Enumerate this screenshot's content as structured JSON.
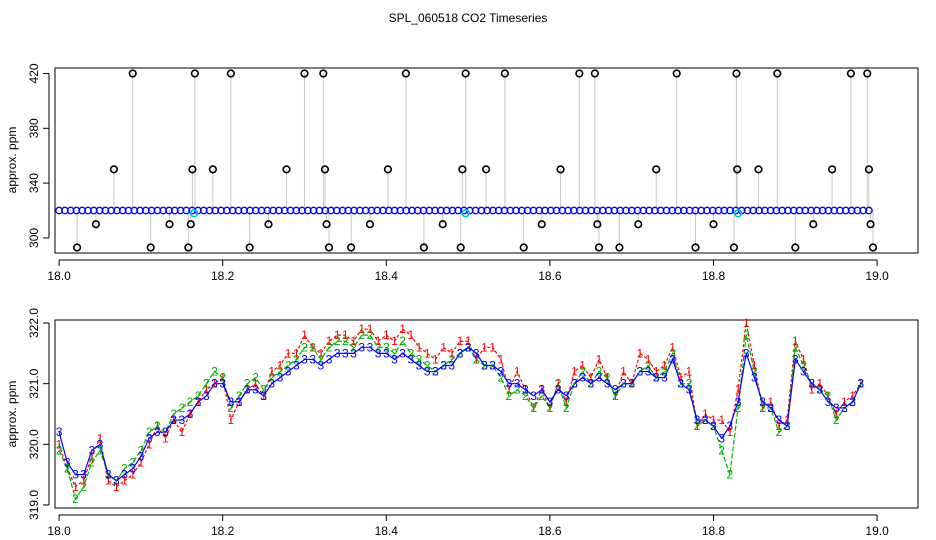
{
  "title": "SPL_060518  CO2 Timeseries",
  "chart_data": [
    {
      "type": "scatter",
      "panel": "top",
      "ylabel": "approx. ppm",
      "xlabel": "",
      "xlim": [
        17.995,
        19.05
      ],
      "ylim": [
        289,
        424
      ],
      "x_ticks": [
        18.0,
        18.2,
        18.4,
        18.6,
        18.8,
        19.0
      ],
      "x_tick_labels": [
        "18.0",
        "18.2",
        "18.4",
        "18.6",
        "18.8",
        "19.0"
      ],
      "y_ticks": [
        300,
        340,
        380,
        420
      ],
      "y_tick_labels": [
        "300",
        "340",
        "380",
        "420"
      ],
      "baseline_ppm": 320,
      "baseline_x_range": [
        18.0,
        18.99
      ],
      "colors": {
        "baseline": "#0000ff",
        "outlier": "#000000",
        "highlight": "#00c8c8",
        "drop": "#909090"
      },
      "highlights": [
        [
          18.165,
          318
        ],
        [
          18.497,
          318
        ],
        [
          18.83,
          318
        ]
      ],
      "outliers": [
        [
          18.022,
          293
        ],
        [
          18.045,
          310
        ],
        [
          18.067,
          350
        ],
        [
          18.09,
          420
        ],
        [
          18.112,
          293
        ],
        [
          18.135,
          310
        ],
        [
          18.158,
          293
        ],
        [
          18.161,
          310
        ],
        [
          18.163,
          350
        ],
        [
          18.166,
          420
        ],
        [
          18.188,
          350
        ],
        [
          18.21,
          420
        ],
        [
          18.233,
          293
        ],
        [
          18.256,
          310
        ],
        [
          18.278,
          350
        ],
        [
          18.3,
          420
        ],
        [
          18.323,
          420
        ],
        [
          18.325,
          350
        ],
        [
          18.327,
          310
        ],
        [
          18.33,
          293
        ],
        [
          18.357,
          293
        ],
        [
          18.38,
          310
        ],
        [
          18.402,
          350
        ],
        [
          18.424,
          420
        ],
        [
          18.446,
          293
        ],
        [
          18.469,
          310
        ],
        [
          18.491,
          293
        ],
        [
          18.493,
          350
        ],
        [
          18.497,
          420
        ],
        [
          18.522,
          350
        ],
        [
          18.545,
          420
        ],
        [
          18.568,
          293
        ],
        [
          18.59,
          310
        ],
        [
          18.613,
          350
        ],
        [
          18.636,
          420
        ],
        [
          18.655,
          420
        ],
        [
          18.658,
          310
        ],
        [
          18.66,
          293
        ],
        [
          18.685,
          293
        ],
        [
          18.708,
          310
        ],
        [
          18.73,
          350
        ],
        [
          18.755,
          420
        ],
        [
          18.778,
          293
        ],
        [
          18.8,
          310
        ],
        [
          18.825,
          293
        ],
        [
          18.828,
          420
        ],
        [
          18.829,
          350
        ],
        [
          18.855,
          350
        ],
        [
          18.878,
          420
        ],
        [
          18.9,
          293
        ],
        [
          18.922,
          310
        ],
        [
          18.945,
          350
        ],
        [
          18.968,
          420
        ],
        [
          18.988,
          420
        ],
        [
          18.99,
          350
        ],
        [
          18.992,
          310
        ],
        [
          18.995,
          293
        ]
      ]
    },
    {
      "type": "line",
      "panel": "bottom",
      "ylabel": "approx. ppm",
      "xlabel": "",
      "xlim": [
        17.995,
        19.05
      ],
      "ylim": [
        318.95,
        322.05
      ],
      "x_ticks": [
        18.0,
        18.2,
        18.4,
        18.6,
        18.8,
        19.0
      ],
      "x_tick_labels": [
        "18.0",
        "18.2",
        "18.4",
        "18.6",
        "18.8",
        "19.0"
      ],
      "y_ticks": [
        319.0,
        320.0,
        321.0,
        322.0
      ],
      "y_tick_labels": [
        "319.0",
        "320.0",
        "321.0",
        "322.0"
      ],
      "x": [
        18.0,
        18.01,
        18.02,
        18.03,
        18.04,
        18.05,
        18.06,
        18.07,
        18.08,
        18.09,
        18.1,
        18.11,
        18.12,
        18.13,
        18.14,
        18.15,
        18.16,
        18.17,
        18.18,
        18.19,
        18.2,
        18.21,
        18.22,
        18.23,
        18.24,
        18.25,
        18.26,
        18.27,
        18.28,
        18.29,
        18.3,
        18.31,
        18.32,
        18.33,
        18.34,
        18.35,
        18.36,
        18.37,
        18.38,
        18.39,
        18.4,
        18.41,
        18.42,
        18.43,
        18.44,
        18.45,
        18.46,
        18.47,
        18.48,
        18.49,
        18.5,
        18.51,
        18.52,
        18.53,
        18.54,
        18.55,
        18.56,
        18.57,
        18.58,
        18.59,
        18.6,
        18.61,
        18.62,
        18.63,
        18.64,
        18.65,
        18.66,
        18.67,
        18.68,
        18.69,
        18.7,
        18.71,
        18.72,
        18.73,
        18.74,
        18.75,
        18.76,
        18.77,
        18.78,
        18.79,
        18.8,
        18.81,
        18.82,
        18.83,
        18.84,
        18.85,
        18.86,
        18.87,
        18.88,
        18.89,
        18.9,
        18.91,
        18.92,
        18.93,
        18.94,
        18.95,
        18.96,
        18.97,
        18.98
      ],
      "series": [
        {
          "name": "1",
          "label": "1",
          "color": "#ff0000",
          "values": [
            320.0,
            319.6,
            319.3,
            319.4,
            319.8,
            320.1,
            319.4,
            319.3,
            319.4,
            319.5,
            319.7,
            320.0,
            320.3,
            320.1,
            320.4,
            320.2,
            320.5,
            320.7,
            320.9,
            321.0,
            321.1,
            320.4,
            320.7,
            320.9,
            321.0,
            320.8,
            321.2,
            321.3,
            321.5,
            321.5,
            321.8,
            321.6,
            321.5,
            321.7,
            321.8,
            321.8,
            321.7,
            321.9,
            321.9,
            321.7,
            321.8,
            321.7,
            321.9,
            321.8,
            321.6,
            321.5,
            321.4,
            321.6,
            321.5,
            321.7,
            321.7,
            321.4,
            321.6,
            321.6,
            321.4,
            320.9,
            321.2,
            320.9,
            320.6,
            320.9,
            320.6,
            321.0,
            320.7,
            321.2,
            321.3,
            321.1,
            321.4,
            321.1,
            320.8,
            321.2,
            321.0,
            321.5,
            321.4,
            321.2,
            321.3,
            321.6,
            321.1,
            321.2,
            320.3,
            320.5,
            320.4,
            320.4,
            320.2,
            320.9,
            322.0,
            321.3,
            320.6,
            320.7,
            320.3,
            320.4,
            321.7,
            321.4,
            320.9,
            321.0,
            320.8,
            320.5,
            320.7,
            320.8,
            321.0
          ]
        },
        {
          "name": "2",
          "label": "2",
          "color": "#00b000",
          "values": [
            319.9,
            319.6,
            319.1,
            319.3,
            319.7,
            319.9,
            319.5,
            319.4,
            319.6,
            319.7,
            319.9,
            320.2,
            320.3,
            320.2,
            320.5,
            320.6,
            320.7,
            320.8,
            321.0,
            321.2,
            321.1,
            320.6,
            320.8,
            321.0,
            321.1,
            320.9,
            321.1,
            321.2,
            321.3,
            321.4,
            321.6,
            321.6,
            321.4,
            321.6,
            321.7,
            321.7,
            321.6,
            321.8,
            321.8,
            321.6,
            321.6,
            321.5,
            321.7,
            321.5,
            321.4,
            321.3,
            321.2,
            321.3,
            321.4,
            321.5,
            321.6,
            321.4,
            321.3,
            321.3,
            321.1,
            320.8,
            320.9,
            320.8,
            320.6,
            320.8,
            320.6,
            321.0,
            320.6,
            321.0,
            321.2,
            321.0,
            321.2,
            321.1,
            320.8,
            321.0,
            321.0,
            321.2,
            321.3,
            321.1,
            321.2,
            321.5,
            321.0,
            321.0,
            320.3,
            320.4,
            320.3,
            319.9,
            319.5,
            320.6,
            321.8,
            321.2,
            320.6,
            320.6,
            320.2,
            320.3,
            321.6,
            321.3,
            321.0,
            320.9,
            320.8,
            320.4,
            320.6,
            320.7,
            321.0
          ]
        },
        {
          "name": "3",
          "label": "3",
          "color": "#0000ff",
          "values": [
            320.2,
            319.7,
            319.5,
            319.5,
            319.9,
            320.0,
            319.5,
            319.4,
            319.5,
            319.6,
            319.8,
            320.1,
            320.2,
            320.2,
            320.4,
            320.4,
            320.5,
            320.7,
            320.8,
            321.0,
            321.0,
            320.7,
            320.7,
            320.9,
            320.9,
            320.8,
            321.0,
            321.1,
            321.2,
            321.3,
            321.4,
            321.4,
            321.3,
            321.4,
            321.5,
            321.5,
            321.5,
            321.6,
            321.6,
            321.5,
            321.5,
            321.4,
            321.5,
            321.4,
            321.3,
            321.2,
            321.2,
            321.3,
            321.3,
            321.5,
            321.6,
            321.5,
            321.3,
            321.3,
            321.2,
            321.0,
            321.0,
            320.9,
            320.8,
            320.9,
            320.7,
            320.9,
            320.8,
            321.0,
            321.1,
            321.0,
            321.1,
            321.0,
            320.9,
            321.0,
            321.0,
            321.2,
            321.2,
            321.1,
            321.1,
            321.4,
            321.0,
            320.9,
            320.4,
            320.4,
            320.3,
            320.1,
            320.3,
            320.7,
            321.5,
            321.1,
            320.7,
            320.6,
            320.4,
            320.3,
            321.4,
            321.2,
            321.0,
            320.9,
            320.7,
            320.6,
            320.6,
            320.7,
            321.0
          ]
        }
      ]
    }
  ]
}
